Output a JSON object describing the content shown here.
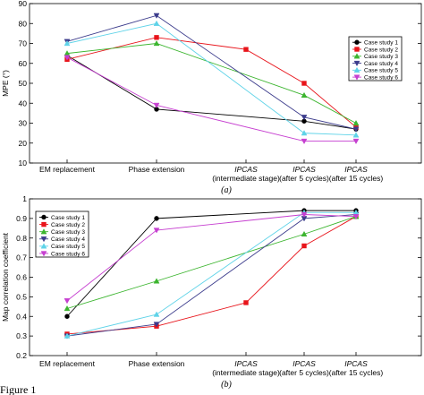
{
  "figure": {
    "caption": "Figure 1",
    "category_lines": [
      [
        "EM replacement"
      ],
      [
        "Phase extension"
      ],
      [
        "IPCAS",
        "(intermediate stage)"
      ],
      [
        "IPCAS",
        "(after 5 cycles)"
      ],
      [
        "IPCAS",
        "(after 15 cycles)"
      ]
    ],
    "category_italic_first_line": [
      false,
      false,
      true,
      true,
      true
    ]
  },
  "chart_data": [
    {
      "type": "line",
      "panel_label": "(a)",
      "ylabel": "MPE (°)",
      "xlabel": "",
      "ylim": [
        10,
        90
      ],
      "yticks": [
        "10",
        "20",
        "30",
        "40",
        "50",
        "60",
        "70",
        "80",
        "90"
      ],
      "ytick_values": [
        10,
        20,
        30,
        40,
        50,
        60,
        70,
        80,
        90
      ],
      "categories": [
        "EM replacement",
        "Phase extension",
        "IPCAS (intermediate stage)",
        "IPCAS (after 5 cycles)",
        "IPCAS (after 15 cycles)"
      ],
      "grid": false,
      "legend_position": "right",
      "series": [
        {
          "name": "Case study 1",
          "color": "#000000",
          "marker": "circle",
          "values": [
            64,
            37,
            null,
            31,
            27
          ]
        },
        {
          "name": "Case study 2",
          "color": "#e8141b",
          "marker": "square",
          "values": [
            62,
            73,
            67,
            50,
            28
          ]
        },
        {
          "name": "Case study 3",
          "color": "#3cb52f",
          "marker": "triangle-up",
          "values": [
            65,
            70,
            null,
            44,
            30
          ]
        },
        {
          "name": "Case study 4",
          "color": "#3c3c8c",
          "marker": "triangle-down",
          "values": [
            71,
            84,
            null,
            33,
            27
          ]
        },
        {
          "name": "Case study 5",
          "color": "#5fd3e8",
          "marker": "triangle-up",
          "values": [
            70,
            80,
            null,
            25,
            24
          ]
        },
        {
          "name": "Case study 6",
          "color": "#c63fd0",
          "marker": "triangle-down",
          "values": [
            63,
            39,
            null,
            21,
            21
          ]
        }
      ]
    },
    {
      "type": "line",
      "panel_label": "(b)",
      "ylabel": "Map correlation coefficient",
      "xlabel": "",
      "ylim": [
        0.2,
        1.0
      ],
      "yticks": [
        "0.2",
        "0.3",
        "0.4",
        "0.5",
        "0.6",
        "0.7",
        "0.8",
        "0.9",
        "1"
      ],
      "ytick_values": [
        0.2,
        0.3,
        0.4,
        0.5,
        0.6,
        0.7,
        0.8,
        0.9,
        1.0
      ],
      "categories": [
        "EM replacement",
        "Phase extension",
        "IPCAS (intermediate stage)",
        "IPCAS (after 5 cycles)",
        "IPCAS (after 15 cycles)"
      ],
      "grid": false,
      "legend_position": "top-left",
      "series": [
        {
          "name": "Case study 1",
          "color": "#000000",
          "marker": "circle",
          "values": [
            0.4,
            0.9,
            null,
            0.94,
            0.94
          ]
        },
        {
          "name": "Case study 2",
          "color": "#e8141b",
          "marker": "square",
          "values": [
            0.31,
            0.35,
            0.47,
            0.76,
            0.91
          ]
        },
        {
          "name": "Case study 3",
          "color": "#3cb52f",
          "marker": "triangle-up",
          "values": [
            0.44,
            0.58,
            null,
            0.82,
            0.91
          ]
        },
        {
          "name": "Case study 4",
          "color": "#3c3c8c",
          "marker": "triangle-down",
          "values": [
            0.3,
            0.36,
            null,
            0.9,
            0.92
          ]
        },
        {
          "name": "Case study 5",
          "color": "#5fd3e8",
          "marker": "triangle-up",
          "values": [
            0.3,
            0.41,
            null,
            0.93,
            0.93
          ]
        },
        {
          "name": "Case study 6",
          "color": "#c63fd0",
          "marker": "triangle-down",
          "values": [
            0.48,
            0.84,
            null,
            0.92,
            0.91
          ]
        }
      ]
    }
  ]
}
